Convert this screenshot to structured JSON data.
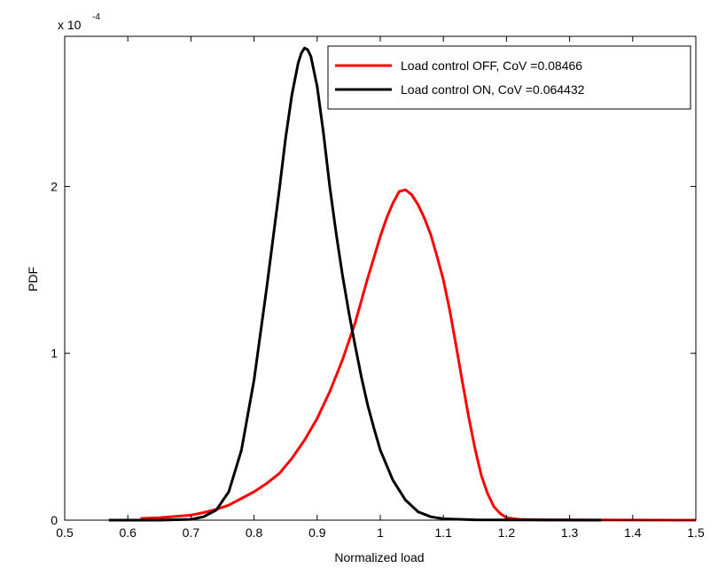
{
  "chart_data": {
    "type": "line",
    "title": "",
    "xlabel": "Normalized load",
    "ylabel": "PDF",
    "xlim": [
      0.5,
      1.5
    ],
    "ylim": [
      0,
      2.9
    ],
    "y_multiplier_label": "x 10",
    "y_multiplier_exponent": "-4",
    "xticks": [
      0.5,
      0.6,
      0.7,
      0.8,
      0.9,
      1.0,
      1.1,
      1.2,
      1.3,
      1.4,
      1.5
    ],
    "xtick_labels": [
      "0.5",
      "0.6",
      "0.7",
      "0.8",
      "0.9",
      "1",
      "1.1",
      "1.2",
      "1.3",
      "1.4",
      "1.5"
    ],
    "yticks": [
      0,
      1,
      2
    ],
    "ytick_labels": [
      "0",
      "1",
      "2"
    ],
    "grid": false,
    "legend_position": "top-right",
    "series": [
      {
        "name": "Load control OFF, CoV =0.08466",
        "color": "#ff0000",
        "x": [
          0.62,
          0.65,
          0.7,
          0.72,
          0.74,
          0.76,
          0.78,
          0.8,
          0.82,
          0.84,
          0.86,
          0.88,
          0.9,
          0.92,
          0.94,
          0.96,
          0.98,
          1.0,
          1.01,
          1.02,
          1.03,
          1.04,
          1.05,
          1.06,
          1.07,
          1.08,
          1.09,
          1.1,
          1.11,
          1.12,
          1.13,
          1.14,
          1.15,
          1.16,
          1.17,
          1.18,
          1.19,
          1.2,
          1.22,
          1.25,
          1.3,
          1.4,
          1.5
        ],
        "y": [
          0.01,
          0.015,
          0.03,
          0.045,
          0.065,
          0.09,
          0.13,
          0.17,
          0.22,
          0.28,
          0.37,
          0.48,
          0.61,
          0.77,
          0.96,
          1.18,
          1.45,
          1.7,
          1.81,
          1.9,
          1.97,
          1.98,
          1.95,
          1.89,
          1.81,
          1.71,
          1.58,
          1.44,
          1.26,
          1.05,
          0.83,
          0.62,
          0.43,
          0.27,
          0.16,
          0.08,
          0.04,
          0.015,
          0.005,
          0.002,
          0.001,
          0.0005,
          0.0
        ]
      },
      {
        "name": "Load control ON, CoV =0.064432",
        "color": "#000000",
        "x": [
          0.57,
          0.65,
          0.7,
          0.72,
          0.74,
          0.76,
          0.78,
          0.8,
          0.82,
          0.84,
          0.85,
          0.86,
          0.87,
          0.875,
          0.88,
          0.885,
          0.89,
          0.9,
          0.91,
          0.92,
          0.93,
          0.94,
          0.95,
          0.96,
          0.97,
          0.98,
          0.99,
          1.0,
          1.02,
          1.04,
          1.06,
          1.08,
          1.1,
          1.15,
          1.2,
          1.35
        ],
        "y": [
          0.0,
          0.0,
          0.005,
          0.02,
          0.06,
          0.17,
          0.42,
          0.84,
          1.39,
          1.98,
          2.29,
          2.55,
          2.74,
          2.8,
          2.83,
          2.82,
          2.78,
          2.6,
          2.32,
          2.0,
          1.72,
          1.47,
          1.25,
          1.05,
          0.86,
          0.69,
          0.55,
          0.42,
          0.24,
          0.12,
          0.05,
          0.02,
          0.008,
          0.002,
          0.001,
          0.0
        ]
      }
    ]
  }
}
